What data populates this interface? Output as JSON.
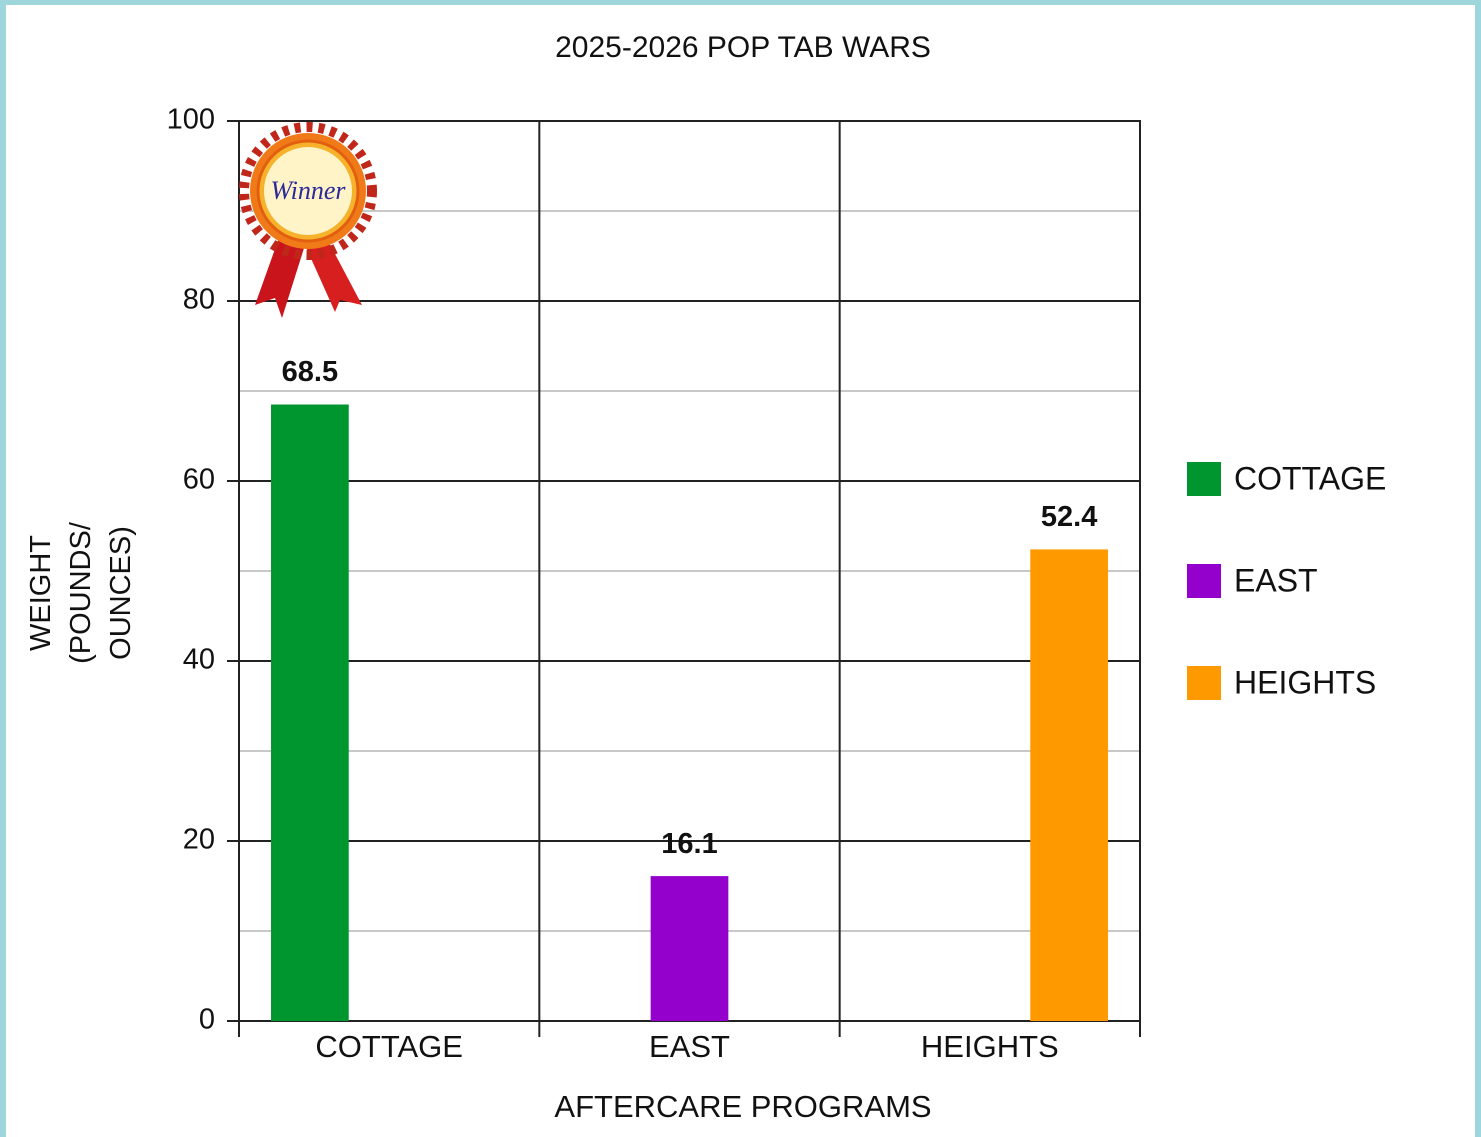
{
  "chart_data": {
    "type": "bar",
    "title": "2025-2026 POP TAB WARS",
    "x_label": "AFTERCARE PROGRAMS",
    "y_label": "WEIGHT (POUNDS/ OUNCES)",
    "annotation": "Winner",
    "categories": [
      "COTTAGE",
      "EAST",
      "HEIGHTS"
    ],
    "series": [
      {
        "name": "COTTAGE",
        "color": "#00962f",
        "values": [
          68.5,
          null,
          null
        ]
      },
      {
        "name": "EAST",
        "color": "#9400cc",
        "values": [
          null,
          16.1,
          null
        ]
      },
      {
        "name": "HEIGHTS",
        "color": "#ff9900",
        "values": [
          null,
          null,
          52.4
        ]
      }
    ],
    "ylim": [
      0,
      100
    ],
    "yticks": [
      0,
      20,
      40,
      60,
      80,
      100
    ],
    "minor_yticks": [
      10,
      30,
      50,
      70,
      90
    ],
    "grid": true,
    "legend": "right",
    "data_labels": true
  }
}
